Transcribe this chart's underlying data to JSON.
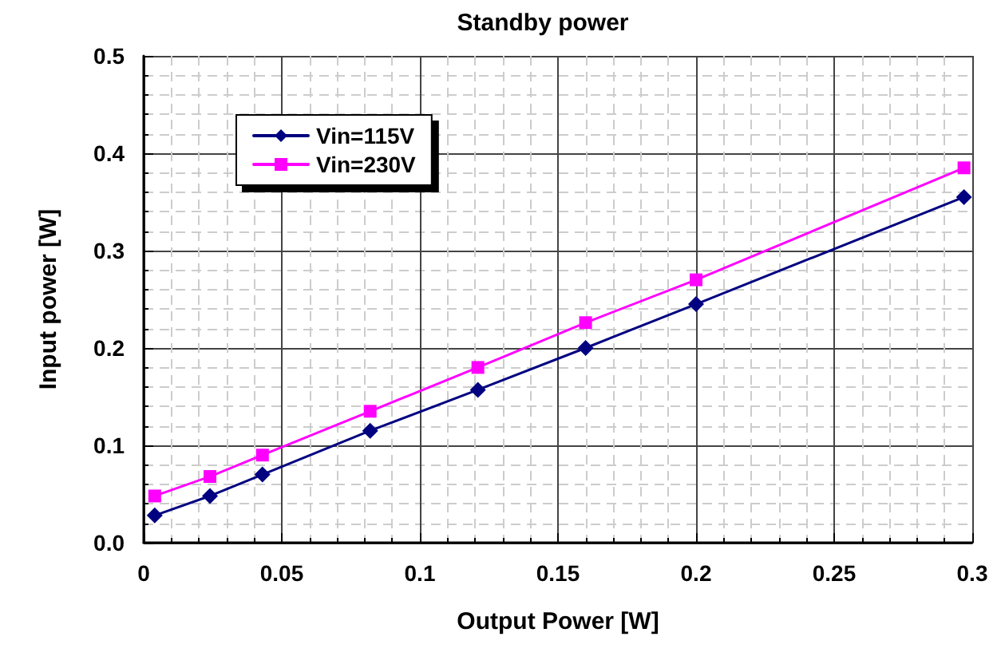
{
  "chart_data": {
    "type": "line",
    "title": "Standby power",
    "xlabel": "Output Power [W]",
    "ylabel": "Input power [W]",
    "x": [
      0.004,
      0.024,
      0.043,
      0.082,
      0.121,
      0.16,
      0.2,
      0.297
    ],
    "series": [
      {
        "name": "Vin=115V",
        "color": "#000080",
        "marker": "diamond",
        "values": [
          0.028,
          0.048,
          0.07,
          0.115,
          0.157,
          0.2,
          0.245,
          0.355
        ]
      },
      {
        "name": "Vin=230V",
        "color": "#ff00ff",
        "marker": "square",
        "values": [
          0.048,
          0.068,
          0.09,
          0.135,
          0.18,
          0.226,
          0.27,
          0.385
        ]
      }
    ],
    "xlim": [
      0,
      0.3
    ],
    "xticks": [
      0,
      0.05,
      0.1,
      0.15,
      0.2,
      0.25,
      0.3
    ],
    "ylim": [
      0,
      0.5
    ],
    "yticks": [
      {
        "value": 0,
        "label": "0.0"
      },
      0.1,
      0.2,
      0.3,
      0.4,
      0.5
    ],
    "grid": true,
    "legend": "top left",
    "line_style": "solid"
  }
}
